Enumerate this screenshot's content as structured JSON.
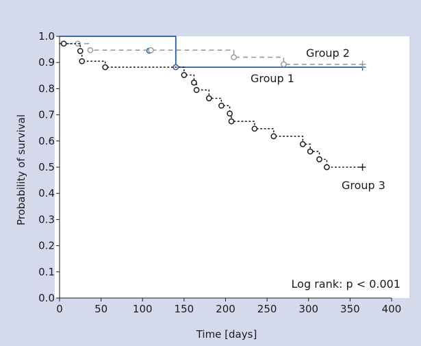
{
  "chart_data": {
    "type": "line",
    "subtype": "kaplan-meier survival curves",
    "xlabel": "Time [days]",
    "ylabel": "Probability of survival",
    "xlim": [
      0,
      400
    ],
    "ylim": [
      0.0,
      1.0
    ],
    "x_ticks": [
      0,
      50,
      100,
      150,
      200,
      250,
      300,
      350,
      400
    ],
    "y_ticks": [
      0.0,
      0.1,
      0.2,
      0.3,
      0.4,
      0.5,
      0.6,
      0.7,
      0.8,
      0.9,
      1.0
    ],
    "grid": false,
    "annotation": "Log rank: p < 0.001",
    "series": [
      {
        "name": "Group 1",
        "color": "#2a5aa0",
        "line_style": "solid",
        "steps": [
          [
            0,
            1.0
          ],
          [
            140,
            0.882
          ],
          [
            365,
            0.882
          ]
        ],
        "events": [
          [
            108,
            0.945
          ],
          [
            140,
            0.882
          ]
        ],
        "censored_end": [
          365,
          0.882
        ]
      },
      {
        "name": "Group 2",
        "color": "#9a9a9a",
        "line_style": "dashed",
        "steps": [
          [
            0,
            0.972
          ],
          [
            22,
            0.972
          ],
          [
            35,
            0.947
          ],
          [
            210,
            0.92
          ],
          [
            270,
            0.893
          ],
          [
            365,
            0.893
          ]
        ],
        "events": [
          [
            22,
            0.972
          ],
          [
            37,
            0.947
          ],
          [
            110,
            0.947
          ],
          [
            210,
            0.92
          ],
          [
            270,
            0.893
          ]
        ],
        "censored_end": [
          365,
          0.893
        ]
      },
      {
        "name": "Group 3",
        "color": "#1a1a1a",
        "line_style": "dotted",
        "steps": [
          [
            0,
            0.972
          ],
          [
            20,
            0.972
          ],
          [
            25,
            0.944
          ],
          [
            27,
            0.905
          ],
          [
            55,
            0.882
          ],
          [
            150,
            0.852
          ],
          [
            162,
            0.823
          ],
          [
            165,
            0.795
          ],
          [
            180,
            0.763
          ],
          [
            195,
            0.735
          ],
          [
            205,
            0.705
          ],
          [
            207,
            0.675
          ],
          [
            235,
            0.647
          ],
          [
            258,
            0.618
          ],
          [
            293,
            0.588
          ],
          [
            302,
            0.56
          ],
          [
            313,
            0.53
          ],
          [
            322,
            0.5
          ],
          [
            365,
            0.5
          ]
        ],
        "events": [
          [
            5,
            0.972
          ],
          [
            25,
            0.944
          ],
          [
            27,
            0.905
          ],
          [
            55,
            0.882
          ],
          [
            150,
            0.852
          ],
          [
            162,
            0.823
          ],
          [
            165,
            0.795
          ],
          [
            180,
            0.763
          ],
          [
            195,
            0.735
          ],
          [
            205,
            0.705
          ],
          [
            207,
            0.675
          ],
          [
            235,
            0.647
          ],
          [
            258,
            0.618
          ],
          [
            293,
            0.588
          ],
          [
            302,
            0.56
          ],
          [
            313,
            0.53
          ],
          [
            322,
            0.5
          ]
        ],
        "censored_end": [
          365,
          0.5
        ]
      }
    ]
  }
}
